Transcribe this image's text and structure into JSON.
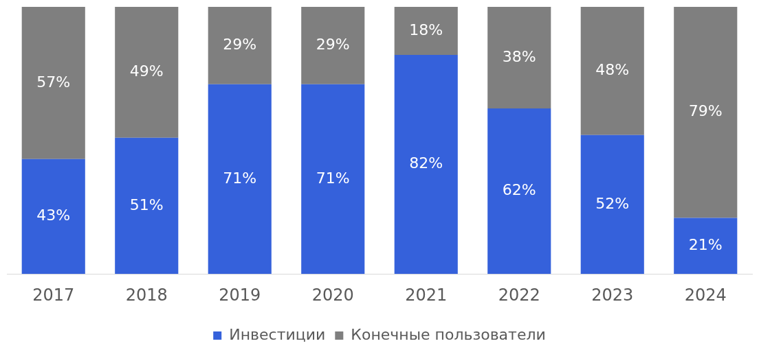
{
  "chart_data": {
    "type": "bar",
    "stacked": true,
    "categories": [
      "2017",
      "2018",
      "2019",
      "2020",
      "2021",
      "2022",
      "2023",
      "2024"
    ],
    "series": [
      {
        "name": "Инвестиции",
        "color": "#3561db",
        "values": [
          43,
          51,
          71,
          71,
          82,
          62,
          52,
          21
        ],
        "value_labels": [
          "43%",
          "51%",
          "71%",
          "71%",
          "82%",
          "62%",
          "52%",
          "21%"
        ]
      },
      {
        "name": "Конечные пользователи",
        "color": "#7f7f7f",
        "values": [
          57,
          49,
          29,
          29,
          18,
          38,
          48,
          79
        ],
        "value_labels": [
          "57%",
          "49%",
          "29%",
          "29%",
          "18%",
          "38%",
          "48%",
          "79%"
        ]
      }
    ],
    "ylim": [
      0,
      100
    ],
    "tick_labels": "x",
    "grid": false,
    "legend": "bottom"
  }
}
